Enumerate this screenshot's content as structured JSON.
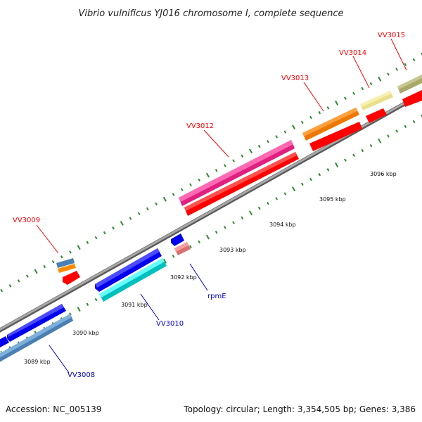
{
  "title": "Vibrio vulnificus YJ016 chromosome I, complete sequence",
  "footer": {
    "accession": "Accession: NC_005139",
    "summary": "Topology: circular; Length: 3,354,505 bp; Genes: 3,386"
  },
  "ticks": {
    "unit": "kbp",
    "labels": [
      "3089 kbp",
      "3090 kbp",
      "3091 kbp",
      "3092 kbp",
      "3093 kbp",
      "3094 kbp",
      "3095 kbp",
      "3096 kbp"
    ]
  },
  "genes": [
    {
      "name": "VV3008",
      "color": "#0000cc",
      "strand": "reverse"
    },
    {
      "name": "VV3009",
      "color": "#ff0000",
      "strand": "forward"
    },
    {
      "name": "VV3010",
      "color": "#0000cc",
      "strand": "reverse"
    },
    {
      "name": "rpmE",
      "color": "#0000cc",
      "strand": "reverse"
    },
    {
      "name": "VV3012",
      "color": "#ff0000",
      "strand": "forward"
    },
    {
      "name": "VV3013",
      "color": "#ff0000",
      "strand": "forward"
    },
    {
      "name": "VV3014",
      "color": "#ff0000",
      "strand": "forward"
    },
    {
      "name": "VV3015",
      "color": "#ff0000",
      "strand": "forward"
    }
  ],
  "colors": {
    "backbone": "#8a8a8a",
    "tick": "#2e8b2e",
    "forward_gene": "#ff0000",
    "reverse_gene": "#0000ff",
    "forward_label": "#ff0000",
    "reverse_label": "#0000cc"
  }
}
